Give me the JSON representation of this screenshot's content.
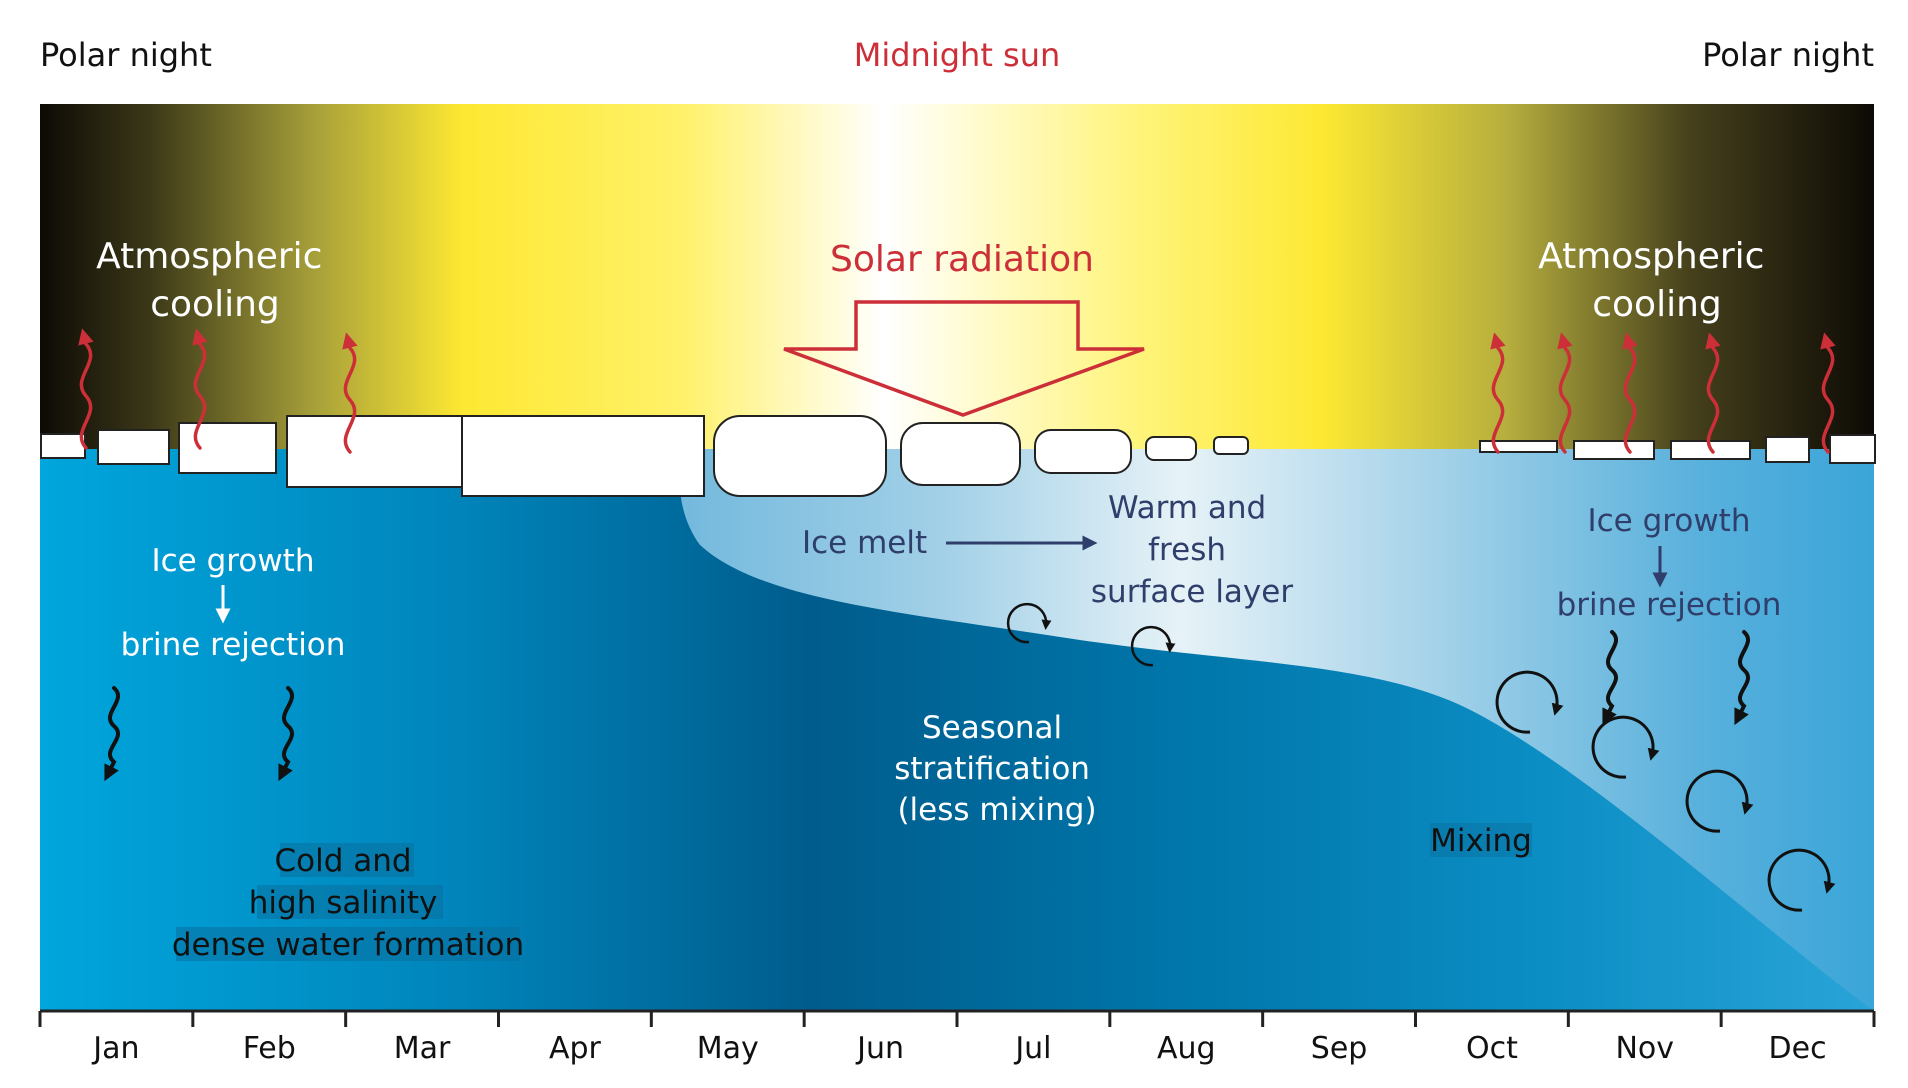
{
  "header": {
    "left_label": "Polar night",
    "center_label": "Midnight sun",
    "right_label": "Polar night"
  },
  "atmosphere": {
    "left_cooling": [
      "Atmospheric",
      "cooling"
    ],
    "right_cooling": [
      "Atmospheric",
      "cooling"
    ],
    "solar_radiation": "Solar radiation"
  },
  "ocean": {
    "left_process_top": "Ice growth",
    "left_process_bottom": "brine rejection",
    "dense_water": [
      "Cold and",
      "high salinity",
      "dense water formation"
    ],
    "ice_melt": "Ice melt",
    "surface_layer": [
      "Warm and",
      "fresh",
      "surface layer"
    ],
    "stratification": [
      "Seasonal",
      "stratification",
      "(less mixing)"
    ],
    "right_process_top": "Ice growth",
    "right_process_bottom": "brine rejection",
    "mixing": "Mixing"
  },
  "months": [
    "Jan",
    "Feb",
    "Mar",
    "Apr",
    "May",
    "Jun",
    "Jul",
    "Aug",
    "Sep",
    "Oct",
    "Nov",
    "Dec"
  ],
  "colors": {
    "night": "#0d0a05",
    "sun_yellow": "#fff03a",
    "midnight_white": "#ffffff",
    "heat_arrow_red": "#cc2f38",
    "ocean_deep": "#005e8e",
    "ocean_light": "#00a4dc",
    "surface_layer_light": "#dfeff6",
    "dark_text": "#2f3e6a",
    "axis": "#222222"
  },
  "icons": {
    "heat_loss": "wavy-red-up-arrow",
    "brine_sink": "wavy-black-down-arrow",
    "mixing": "curved-circular-arrow",
    "solar_input": "hollow-red-down-arrow"
  }
}
